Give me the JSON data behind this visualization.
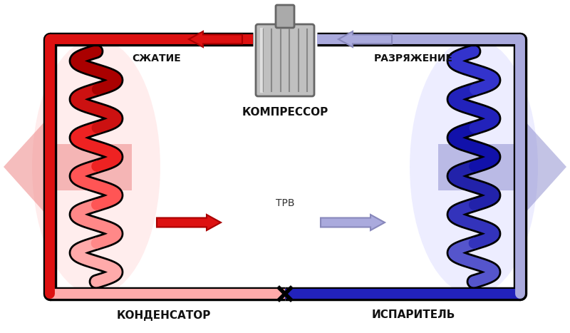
{
  "bg_color": "#ffffff",
  "condenser_label": "КОНДЕНСАТОР",
  "evaporator_label": "ИСПАРИТЕЛЬ",
  "trv_label": "ТРВ",
  "compressor_label": "КОМПРЕССОР",
  "compression_label": "СЖАТИЕ",
  "expansion_label": "РАЗРЯЖЕНИЕ",
  "hot_color": "#dd1111",
  "hot_color2": "#ff4444",
  "warm_color": "#ffaaaa",
  "cold_color": "#2222bb",
  "cold_color2": "#6666cc",
  "cool_color": "#aaaadd",
  "pipe_lw": 10,
  "coil_lw": 11
}
